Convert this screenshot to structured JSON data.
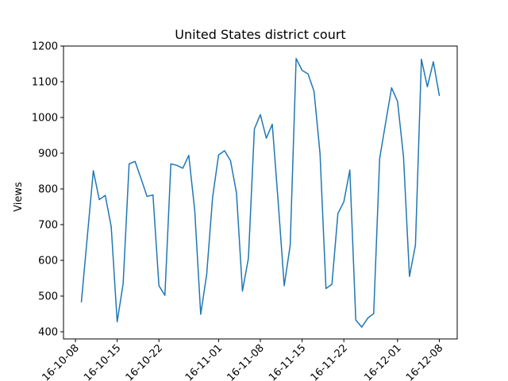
{
  "chart_data": {
    "type": "line",
    "title": "United States district court",
    "xlabel": "",
    "ylabel": "Views",
    "ylim": [
      380,
      1200
    ],
    "yticks": [
      400,
      500,
      600,
      700,
      800,
      900,
      1000,
      1100,
      1200
    ],
    "xlim": [
      "2016-10-06",
      "2016-12-11"
    ],
    "xticks": [
      "2016-10-08",
      "2016-10-15",
      "2016-10-22",
      "2016-11-01",
      "2016-11-08",
      "2016-11-15",
      "2016-11-22",
      "2016-12-01",
      "2016-12-08"
    ],
    "xtick_labels": [
      "16-10-08",
      "16-10-15",
      "16-10-22",
      "16-11-01",
      "16-11-08",
      "16-11-15",
      "16-11-22",
      "16-12-01",
      "16-12-08"
    ],
    "grid": false,
    "line_color": "#1f77b4",
    "series": [
      {
        "x": [
          "2016-10-09",
          "2016-10-10",
          "2016-10-11",
          "2016-10-12",
          "2016-10-13",
          "2016-10-14",
          "2016-10-15",
          "2016-10-16",
          "2016-10-17",
          "2016-10-18",
          "2016-10-19",
          "2016-10-20",
          "2016-10-21",
          "2016-10-22",
          "2016-10-23",
          "2016-10-24",
          "2016-10-25",
          "2016-10-26",
          "2016-10-27",
          "2016-10-28",
          "2016-10-29",
          "2016-10-30",
          "2016-10-31",
          "2016-11-01",
          "2016-11-02",
          "2016-11-03",
          "2016-11-04",
          "2016-11-05",
          "2016-11-06",
          "2016-11-07",
          "2016-11-08",
          "2016-11-09",
          "2016-11-10",
          "2016-11-11",
          "2016-11-12",
          "2016-11-13",
          "2016-11-14",
          "2016-11-15",
          "2016-11-16",
          "2016-11-17",
          "2016-11-18",
          "2016-11-19",
          "2016-11-20",
          "2016-11-21",
          "2016-11-22",
          "2016-11-23",
          "2016-11-24",
          "2016-11-25",
          "2016-11-26",
          "2016-11-27",
          "2016-11-28",
          "2016-11-29",
          "2016-11-30",
          "2016-12-01",
          "2016-12-02",
          "2016-12-03",
          "2016-12-04",
          "2016-12-05",
          "2016-12-06",
          "2016-12-07",
          "2016-12-08"
        ],
        "values": [
          484,
          668,
          851,
          770,
          782,
          694,
          428,
          535,
          870,
          877,
          829,
          779,
          783,
          529,
          502,
          870,
          866,
          858,
          894,
          740,
          449,
          560,
          777,
          895,
          907,
          879,
          789,
          514,
          606,
          968,
          1008,
          942,
          981,
          761,
          529,
          642,
          1165,
          1132,
          1122,
          1073,
          900,
          521,
          533,
          731,
          764,
          853,
          433,
          413,
          438,
          451,
          885,
          985,
          1083,
          1045,
          890,
          555,
          643,
          1163,
          1086,
          1156,
          1062
        ]
      }
    ]
  }
}
